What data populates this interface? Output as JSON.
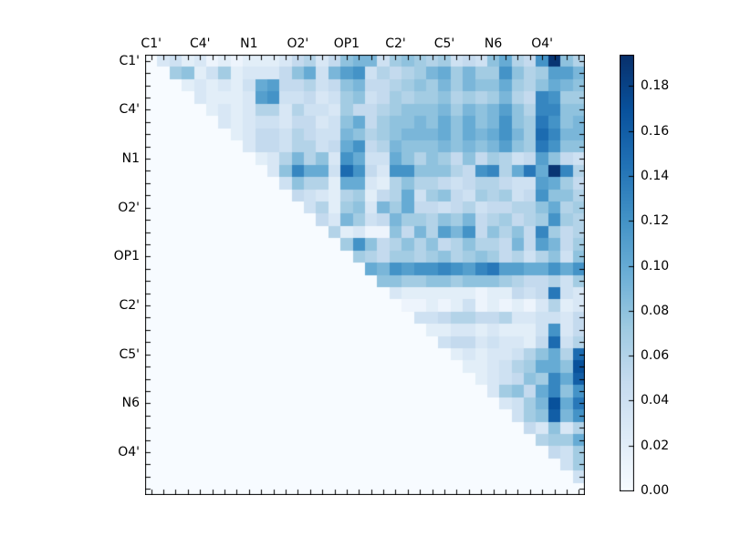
{
  "figure": {
    "background": "#ffffff",
    "frame_color": "#000000"
  },
  "chart_data": {
    "type": "heatmap",
    "title": "",
    "xlabel": "",
    "ylabel": "",
    "n_cells": 36,
    "labels_every_n_cells": 4,
    "x_group_labels": [
      "C1'",
      "C4'",
      "N1",
      "O2'",
      "OP1",
      "C2'",
      "C5'",
      "N6",
      "O4'"
    ],
    "y_group_labels": [
      "C1'",
      "C4'",
      "N1",
      "O2'",
      "OP1",
      "C2'",
      "C5'",
      "N6",
      "O4'"
    ],
    "color_scale": {
      "name": "Blues",
      "vmin": 0.0,
      "vmax": 0.194,
      "stops": [
        "#f7fbff",
        "#deebf7",
        "#c6dbef",
        "#9ecae1",
        "#6baed6",
        "#4292c6",
        "#2171b5",
        "#08519c",
        "#08306b"
      ]
    },
    "colorbar": {
      "tick_labels": [
        "0.00",
        "0.02",
        "0.04",
        "0.06",
        "0.08",
        "0.10",
        "0.12",
        "0.14",
        "0.16",
        "0.18"
      ],
      "tick_values": [
        0.0,
        0.02,
        0.04,
        0.06,
        0.08,
        0.1,
        0.12,
        0.14,
        0.16,
        0.18
      ]
    },
    "matrix": [
      [
        0,
        0.03,
        0.04,
        0.02,
        0.03,
        0.01,
        0.02,
        0.01,
        0.02,
        0.02,
        0.02,
        0.03,
        0.05,
        0.06,
        0.03,
        0.05,
        0.08,
        0.09,
        0.09,
        0.04,
        0.07,
        0.08,
        0.07,
        0.06,
        0.07,
        0.04,
        0.05,
        0.04,
        0.08,
        0.1,
        0.06,
        0.05,
        0.12,
        0.19,
        0.08,
        0.06
      ],
      [
        0,
        0,
        0.07,
        0.08,
        0.02,
        0.04,
        0.07,
        0.02,
        0.03,
        0.03,
        0.03,
        0.05,
        0.08,
        0.1,
        0.04,
        0.09,
        0.11,
        0.12,
        0.04,
        0.06,
        0.05,
        0.06,
        0.07,
        0.09,
        0.1,
        0.07,
        0.09,
        0.07,
        0.07,
        0.12,
        0.08,
        0.06,
        0.07,
        0.11,
        0.11,
        0.09
      ],
      [
        0,
        0,
        0,
        0.02,
        0.03,
        0.02,
        0.03,
        0.02,
        0.04,
        0.1,
        0.11,
        0.05,
        0.05,
        0.06,
        0.04,
        0.05,
        0.08,
        0.09,
        0.05,
        0.05,
        0.06,
        0.07,
        0.08,
        0.07,
        0.09,
        0.07,
        0.09,
        0.08,
        0.08,
        0.1,
        0.07,
        0.06,
        0.08,
        0.1,
        0.09,
        0.08
      ],
      [
        0,
        0,
        0,
        0,
        0.03,
        0.02,
        0.02,
        0.02,
        0.03,
        0.11,
        0.12,
        0.04,
        0.04,
        0.05,
        0.03,
        0.04,
        0.07,
        0.08,
        0.04,
        0.05,
        0.07,
        0.06,
        0.07,
        0.07,
        0.08,
        0.06,
        0.07,
        0.06,
        0.07,
        0.09,
        0.06,
        0.05,
        0.13,
        0.12,
        0.07,
        0.07
      ],
      [
        0,
        0,
        0,
        0,
        0,
        0.02,
        0.03,
        0.02,
        0.03,
        0.06,
        0.06,
        0.03,
        0.06,
        0.04,
        0.04,
        0.03,
        0.07,
        0.05,
        0.05,
        0.06,
        0.07,
        0.08,
        0.08,
        0.08,
        0.09,
        0.07,
        0.09,
        0.08,
        0.09,
        0.11,
        0.08,
        0.06,
        0.13,
        0.13,
        0.08,
        0.08
      ],
      [
        0,
        0,
        0,
        0,
        0,
        0,
        0.03,
        0.02,
        0.03,
        0.04,
        0.04,
        0.03,
        0.05,
        0.05,
        0.03,
        0.04,
        0.08,
        0.1,
        0.05,
        0.07,
        0.08,
        0.08,
        0.09,
        0.08,
        0.1,
        0.08,
        0.1,
        0.08,
        0.09,
        0.12,
        0.08,
        0.07,
        0.14,
        0.12,
        0.08,
        0.09
      ],
      [
        0,
        0,
        0,
        0,
        0,
        0,
        0,
        0.02,
        0.03,
        0.05,
        0.05,
        0.04,
        0.06,
        0.05,
        0.04,
        0.04,
        0.09,
        0.08,
        0.06,
        0.07,
        0.08,
        0.09,
        0.09,
        0.09,
        0.1,
        0.08,
        0.1,
        0.09,
        0.1,
        0.12,
        0.09,
        0.07,
        0.15,
        0.13,
        0.09,
        0.09
      ],
      [
        0,
        0,
        0,
        0,
        0,
        0,
        0,
        0,
        0.03,
        0.05,
        0.05,
        0.04,
        0.06,
        0.06,
        0.04,
        0.05,
        0.1,
        0.12,
        0.05,
        0.06,
        0.09,
        0.08,
        0.08,
        0.08,
        0.09,
        0.08,
        0.09,
        0.08,
        0.09,
        0.11,
        0.08,
        0.07,
        0.14,
        0.12,
        0.08,
        0.08
      ],
      [
        0,
        0,
        0,
        0,
        0,
        0,
        0,
        0,
        0,
        0.02,
        0.03,
        0.06,
        0.09,
        0.06,
        0.08,
        0.03,
        0.12,
        0.1,
        0.04,
        0.04,
        0.1,
        0.08,
        0.06,
        0.08,
        0.07,
        0.05,
        0.08,
        0.05,
        0.07,
        0.06,
        0.04,
        0.05,
        0.11,
        0.08,
        0.05,
        0.04
      ],
      [
        0,
        0,
        0,
        0,
        0,
        0,
        0,
        0,
        0,
        0,
        0.03,
        0.08,
        0.13,
        0.1,
        0.1,
        0.04,
        0.15,
        0.12,
        0.05,
        0.03,
        0.12,
        0.12,
        0.08,
        0.08,
        0.08,
        0.06,
        0.05,
        0.12,
        0.13,
        0.06,
        0.1,
        0.14,
        0.1,
        0.19,
        0.13,
        0.06
      ],
      [
        0,
        0,
        0,
        0,
        0,
        0,
        0,
        0,
        0,
        0,
        0,
        0.04,
        0.08,
        0.06,
        0.06,
        0.02,
        0.1,
        0.1,
        0.03,
        0.02,
        0.06,
        0.08,
        0.06,
        0.06,
        0.05,
        0.04,
        0.05,
        0.06,
        0.06,
        0.05,
        0.04,
        0.04,
        0.11,
        0.1,
        0.07,
        0.05
      ],
      [
        0,
        0,
        0,
        0,
        0,
        0,
        0,
        0,
        0,
        0,
        0,
        0,
        0.05,
        0.04,
        0.03,
        0.02,
        0.06,
        0.07,
        0.02,
        0.05,
        0.06,
        0.1,
        0.04,
        0.07,
        0.08,
        0.05,
        0.04,
        0.07,
        0.06,
        0.07,
        0.04,
        0.05,
        0.12,
        0.08,
        0.08,
        0.06
      ],
      [
        0,
        0,
        0,
        0,
        0,
        0,
        0,
        0,
        0,
        0,
        0,
        0,
        0,
        0.04,
        0.06,
        0.02,
        0.07,
        0.08,
        0.03,
        0.09,
        0.07,
        0.1,
        0.05,
        0.05,
        0.04,
        0.05,
        0.06,
        0.04,
        0.05,
        0.05,
        0.06,
        0.06,
        0.08,
        0.1,
        0.06,
        0.07
      ],
      [
        0,
        0,
        0,
        0,
        0,
        0,
        0,
        0,
        0,
        0,
        0,
        0,
        0,
        0,
        0.05,
        0.03,
        0.09,
        0.07,
        0.04,
        0.05,
        0.09,
        0.07,
        0.07,
        0.06,
        0.08,
        0.07,
        0.09,
        0.05,
        0.06,
        0.07,
        0.05,
        0.06,
        0.07,
        0.12,
        0.07,
        0.06
      ],
      [
        0,
        0,
        0,
        0,
        0,
        0,
        0,
        0,
        0,
        0,
        0,
        0,
        0,
        0,
        0,
        0.06,
        0.02,
        0.03,
        0.01,
        0.01,
        0.08,
        0.05,
        0.09,
        0.06,
        0.11,
        0.09,
        0.12,
        0.05,
        0.08,
        0.06,
        0.08,
        0.05,
        0.13,
        0.07,
        0.05,
        0.06
      ],
      [
        0,
        0,
        0,
        0,
        0,
        0,
        0,
        0,
        0,
        0,
        0,
        0,
        0,
        0,
        0,
        0,
        0.07,
        0.12,
        0.08,
        0.05,
        0.06,
        0.08,
        0.06,
        0.08,
        0.05,
        0.06,
        0.08,
        0.06,
        0.06,
        0.05,
        0.09,
        0.05,
        0.11,
        0.09,
        0.05,
        0.07
      ],
      [
        0,
        0,
        0,
        0,
        0,
        0,
        0,
        0,
        0,
        0,
        0,
        0,
        0,
        0,
        0,
        0,
        0,
        0.07,
        0.06,
        0.05,
        0.07,
        0.07,
        0.06,
        0.07,
        0.08,
        0.06,
        0.07,
        0.08,
        0.07,
        0.05,
        0.06,
        0.04,
        0.06,
        0.08,
        0.04,
        0.08
      ],
      [
        0,
        0,
        0,
        0,
        0,
        0,
        0,
        0,
        0,
        0,
        0,
        0,
        0,
        0,
        0,
        0,
        0,
        0,
        0.1,
        0.09,
        0.12,
        0.11,
        0.12,
        0.12,
        0.13,
        0.12,
        0.11,
        0.13,
        0.14,
        0.11,
        0.11,
        0.1,
        0.1,
        0.12,
        0.1,
        0.12
      ],
      [
        0,
        0,
        0,
        0,
        0,
        0,
        0,
        0,
        0,
        0,
        0,
        0,
        0,
        0,
        0,
        0,
        0,
        0,
        0,
        0.08,
        0.08,
        0.07,
        0.07,
        0.08,
        0.08,
        0.07,
        0.08,
        0.08,
        0.08,
        0.07,
        0.06,
        0.05,
        0.05,
        0.06,
        0.04,
        0.07
      ],
      [
        0,
        0,
        0,
        0,
        0,
        0,
        0,
        0,
        0,
        0,
        0,
        0,
        0,
        0,
        0,
        0,
        0,
        0,
        0,
        0,
        0.03,
        0.02,
        0.02,
        0.02,
        0.02,
        0.02,
        0.02,
        0.01,
        0.02,
        0.02,
        0.05,
        0.04,
        0.05,
        0.14,
        0.04,
        0.03
      ],
      [
        0,
        0,
        0,
        0,
        0,
        0,
        0,
        0,
        0,
        0,
        0,
        0,
        0,
        0,
        0,
        0,
        0,
        0,
        0,
        0,
        0,
        0.01,
        0.01,
        0.02,
        0.01,
        0.02,
        0.04,
        0.01,
        0.02,
        0.01,
        0.02,
        0.01,
        0.03,
        0.06,
        0.02,
        0.03
      ],
      [
        0,
        0,
        0,
        0,
        0,
        0,
        0,
        0,
        0,
        0,
        0,
        0,
        0,
        0,
        0,
        0,
        0,
        0,
        0,
        0,
        0,
        0,
        0.04,
        0.04,
        0.05,
        0.06,
        0.06,
        0.05,
        0.05,
        0.06,
        0.03,
        0.03,
        0.04,
        0.04,
        0.03,
        0.05
      ],
      [
        0,
        0,
        0,
        0,
        0,
        0,
        0,
        0,
        0,
        0,
        0,
        0,
        0,
        0,
        0,
        0,
        0,
        0,
        0,
        0,
        0,
        0,
        0,
        0.02,
        0.02,
        0.03,
        0.03,
        0.02,
        0.03,
        0.02,
        0.02,
        0.02,
        0.04,
        0.12,
        0.03,
        0.05
      ],
      [
        0,
        0,
        0,
        0,
        0,
        0,
        0,
        0,
        0,
        0,
        0,
        0,
        0,
        0,
        0,
        0,
        0,
        0,
        0,
        0,
        0,
        0,
        0,
        0,
        0.04,
        0.05,
        0.05,
        0.03,
        0.04,
        0.03,
        0.03,
        0.02,
        0.05,
        0.15,
        0.04,
        0.06
      ],
      [
        0,
        0,
        0,
        0,
        0,
        0,
        0,
        0,
        0,
        0,
        0,
        0,
        0,
        0,
        0,
        0,
        0,
        0,
        0,
        0,
        0,
        0,
        0,
        0,
        0,
        0.02,
        0.03,
        0.02,
        0.03,
        0.03,
        0.04,
        0.06,
        0.08,
        0.1,
        0.06,
        0.15
      ],
      [
        0,
        0,
        0,
        0,
        0,
        0,
        0,
        0,
        0,
        0,
        0,
        0,
        0,
        0,
        0,
        0,
        0,
        0,
        0,
        0,
        0,
        0,
        0,
        0,
        0,
        0,
        0.02,
        0.02,
        0.03,
        0.04,
        0.06,
        0.07,
        0.1,
        0.1,
        0.08,
        0.17
      ],
      [
        0,
        0,
        0,
        0,
        0,
        0,
        0,
        0,
        0,
        0,
        0,
        0,
        0,
        0,
        0,
        0,
        0,
        0,
        0,
        0,
        0,
        0,
        0,
        0,
        0,
        0,
        0,
        0.02,
        0.03,
        0.04,
        0.05,
        0.08,
        0.07,
        0.13,
        0.1,
        0.16
      ],
      [
        0,
        0,
        0,
        0,
        0,
        0,
        0,
        0,
        0,
        0,
        0,
        0,
        0,
        0,
        0,
        0,
        0,
        0,
        0,
        0,
        0,
        0,
        0,
        0,
        0,
        0,
        0,
        0,
        0.03,
        0.07,
        0.08,
        0.05,
        0.1,
        0.13,
        0.08,
        0.12
      ],
      [
        0,
        0,
        0,
        0,
        0,
        0,
        0,
        0,
        0,
        0,
        0,
        0,
        0,
        0,
        0,
        0,
        0,
        0,
        0,
        0,
        0,
        0,
        0,
        0,
        0,
        0,
        0,
        0,
        0,
        0.03,
        0.04,
        0.07,
        0.09,
        0.17,
        0.1,
        0.14
      ],
      [
        0,
        0,
        0,
        0,
        0,
        0,
        0,
        0,
        0,
        0,
        0,
        0,
        0,
        0,
        0,
        0,
        0,
        0,
        0,
        0,
        0,
        0,
        0,
        0,
        0,
        0,
        0,
        0,
        0,
        0,
        0.04,
        0.07,
        0.08,
        0.16,
        0.09,
        0.12
      ],
      [
        0,
        0,
        0,
        0,
        0,
        0,
        0,
        0,
        0,
        0,
        0,
        0,
        0,
        0,
        0,
        0,
        0,
        0,
        0,
        0,
        0,
        0,
        0,
        0,
        0,
        0,
        0,
        0,
        0,
        0,
        0,
        0.05,
        0.03,
        0.08,
        0.03,
        0.06
      ],
      [
        0,
        0,
        0,
        0,
        0,
        0,
        0,
        0,
        0,
        0,
        0,
        0,
        0,
        0,
        0,
        0,
        0,
        0,
        0,
        0,
        0,
        0,
        0,
        0,
        0,
        0,
        0,
        0,
        0,
        0,
        0,
        0,
        0.06,
        0.07,
        0.07,
        0.1
      ],
      [
        0,
        0,
        0,
        0,
        0,
        0,
        0,
        0,
        0,
        0,
        0,
        0,
        0,
        0,
        0,
        0,
        0,
        0,
        0,
        0,
        0,
        0,
        0,
        0,
        0,
        0,
        0,
        0,
        0,
        0,
        0,
        0,
        0,
        0.05,
        0.04,
        0.07
      ],
      [
        0,
        0,
        0,
        0,
        0,
        0,
        0,
        0,
        0,
        0,
        0,
        0,
        0,
        0,
        0,
        0,
        0,
        0,
        0,
        0,
        0,
        0,
        0,
        0,
        0,
        0,
        0,
        0,
        0,
        0,
        0,
        0,
        0,
        0,
        0.04,
        0.07
      ],
      [
        0,
        0,
        0,
        0,
        0,
        0,
        0,
        0,
        0,
        0,
        0,
        0,
        0,
        0,
        0,
        0,
        0,
        0,
        0,
        0,
        0,
        0,
        0,
        0,
        0,
        0,
        0,
        0,
        0,
        0,
        0,
        0,
        0,
        0,
        0,
        0.04
      ],
      [
        0,
        0,
        0,
        0,
        0,
        0,
        0,
        0,
        0,
        0,
        0,
        0,
        0,
        0,
        0,
        0,
        0,
        0,
        0,
        0,
        0,
        0,
        0,
        0,
        0,
        0,
        0,
        0,
        0,
        0,
        0,
        0,
        0,
        0,
        0,
        0
      ]
    ]
  }
}
